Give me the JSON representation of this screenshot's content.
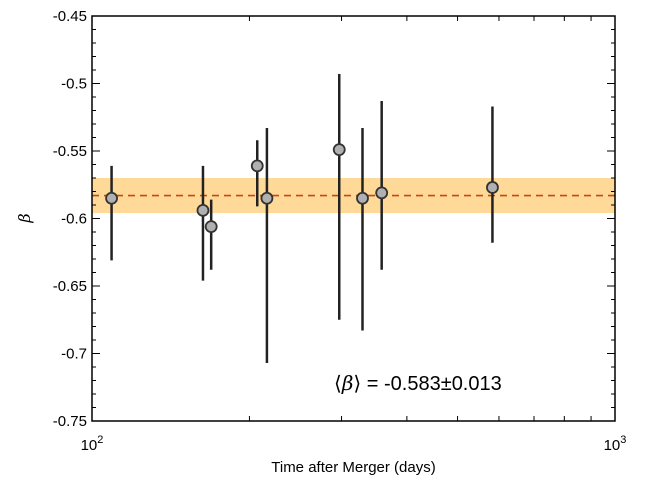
{
  "chart_data": {
    "type": "scatter",
    "title": "",
    "xlabel": "Time after Merger (days)",
    "ylabel": "β",
    "x_scale": "log",
    "xlim": [
      100,
      1000
    ],
    "ylim": [
      -0.75,
      -0.45
    ],
    "x_ticks": [
      {
        "value": 100,
        "base": "10",
        "exp": "2"
      },
      {
        "value": 1000,
        "base": "10",
        "exp": "3"
      }
    ],
    "y_ticks": [
      {
        "value": -0.45,
        "label": "-0.45"
      },
      {
        "value": -0.5,
        "label": "-0.5"
      },
      {
        "value": -0.55,
        "label": "-0.55"
      },
      {
        "value": -0.6,
        "label": "-0.6"
      },
      {
        "value": -0.65,
        "label": "-0.65"
      },
      {
        "value": -0.7,
        "label": "-0.7"
      },
      {
        "value": -0.75,
        "label": "-0.75"
      }
    ],
    "points": [
      {
        "x": 109,
        "y": -0.585,
        "y_low": -0.631,
        "y_high": -0.561
      },
      {
        "x": 163,
        "y": -0.594,
        "y_low": -0.646,
        "y_high": -0.561
      },
      {
        "x": 169,
        "y": -0.606,
        "y_low": -0.638,
        "y_high": -0.586
      },
      {
        "x": 207,
        "y": -0.561,
        "y_low": -0.591,
        "y_high": -0.542
      },
      {
        "x": 216,
        "y": -0.585,
        "y_low": -0.707,
        "y_high": -0.533
      },
      {
        "x": 297,
        "y": -0.549,
        "y_low": -0.675,
        "y_high": -0.493
      },
      {
        "x": 329,
        "y": -0.585,
        "y_low": -0.683,
        "y_high": -0.533
      },
      {
        "x": 358,
        "y": -0.581,
        "y_low": -0.638,
        "y_high": -0.513
      },
      {
        "x": 583,
        "y": -0.577,
        "y_low": -0.618,
        "y_high": -0.517
      }
    ],
    "mean": {
      "value": -0.583,
      "band_low": -0.596,
      "band_high": -0.57
    },
    "annotation": {
      "symbol": "β",
      "left_bracket": "⟨",
      "right_bracket": "⟩",
      "equals": " = -0.583",
      "pm": "±",
      "err": "0.013"
    },
    "colors": {
      "band": "#ffd998",
      "mean_line": "#cc4411",
      "marker_fill": "#b0b0b0",
      "marker_edge": "#333333",
      "errorbar": "#222222"
    }
  }
}
